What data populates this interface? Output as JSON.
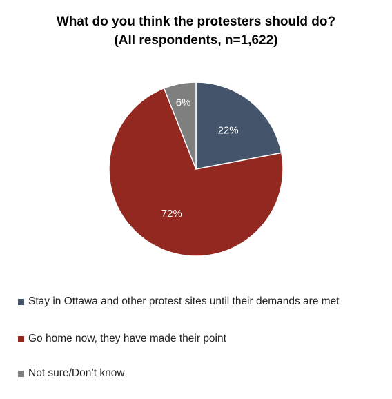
{
  "chart_data": {
    "type": "pie",
    "title": "What do you think the protesters should do?",
    "subtitle": "(All respondents, n=1,622)",
    "slices": [
      {
        "label": "Stay in Ottawa and other protest sites until their demands are met",
        "value": 22,
        "value_label": "22%",
        "color": "#44546a",
        "label_color": "#ffffff"
      },
      {
        "label": "Go home now, they have made their point",
        "value": 72,
        "value_label": "72%",
        "color": "#922820",
        "label_color": "#ffffff"
      },
      {
        "label": "Not sure/Don’t know",
        "value": 6,
        "value_label": "6%",
        "color": "#7f7f7f",
        "label_color": "#ffffff"
      }
    ],
    "legend_position": "bottom",
    "start_angle": "12 o'clock",
    "direction": "clockwise"
  }
}
